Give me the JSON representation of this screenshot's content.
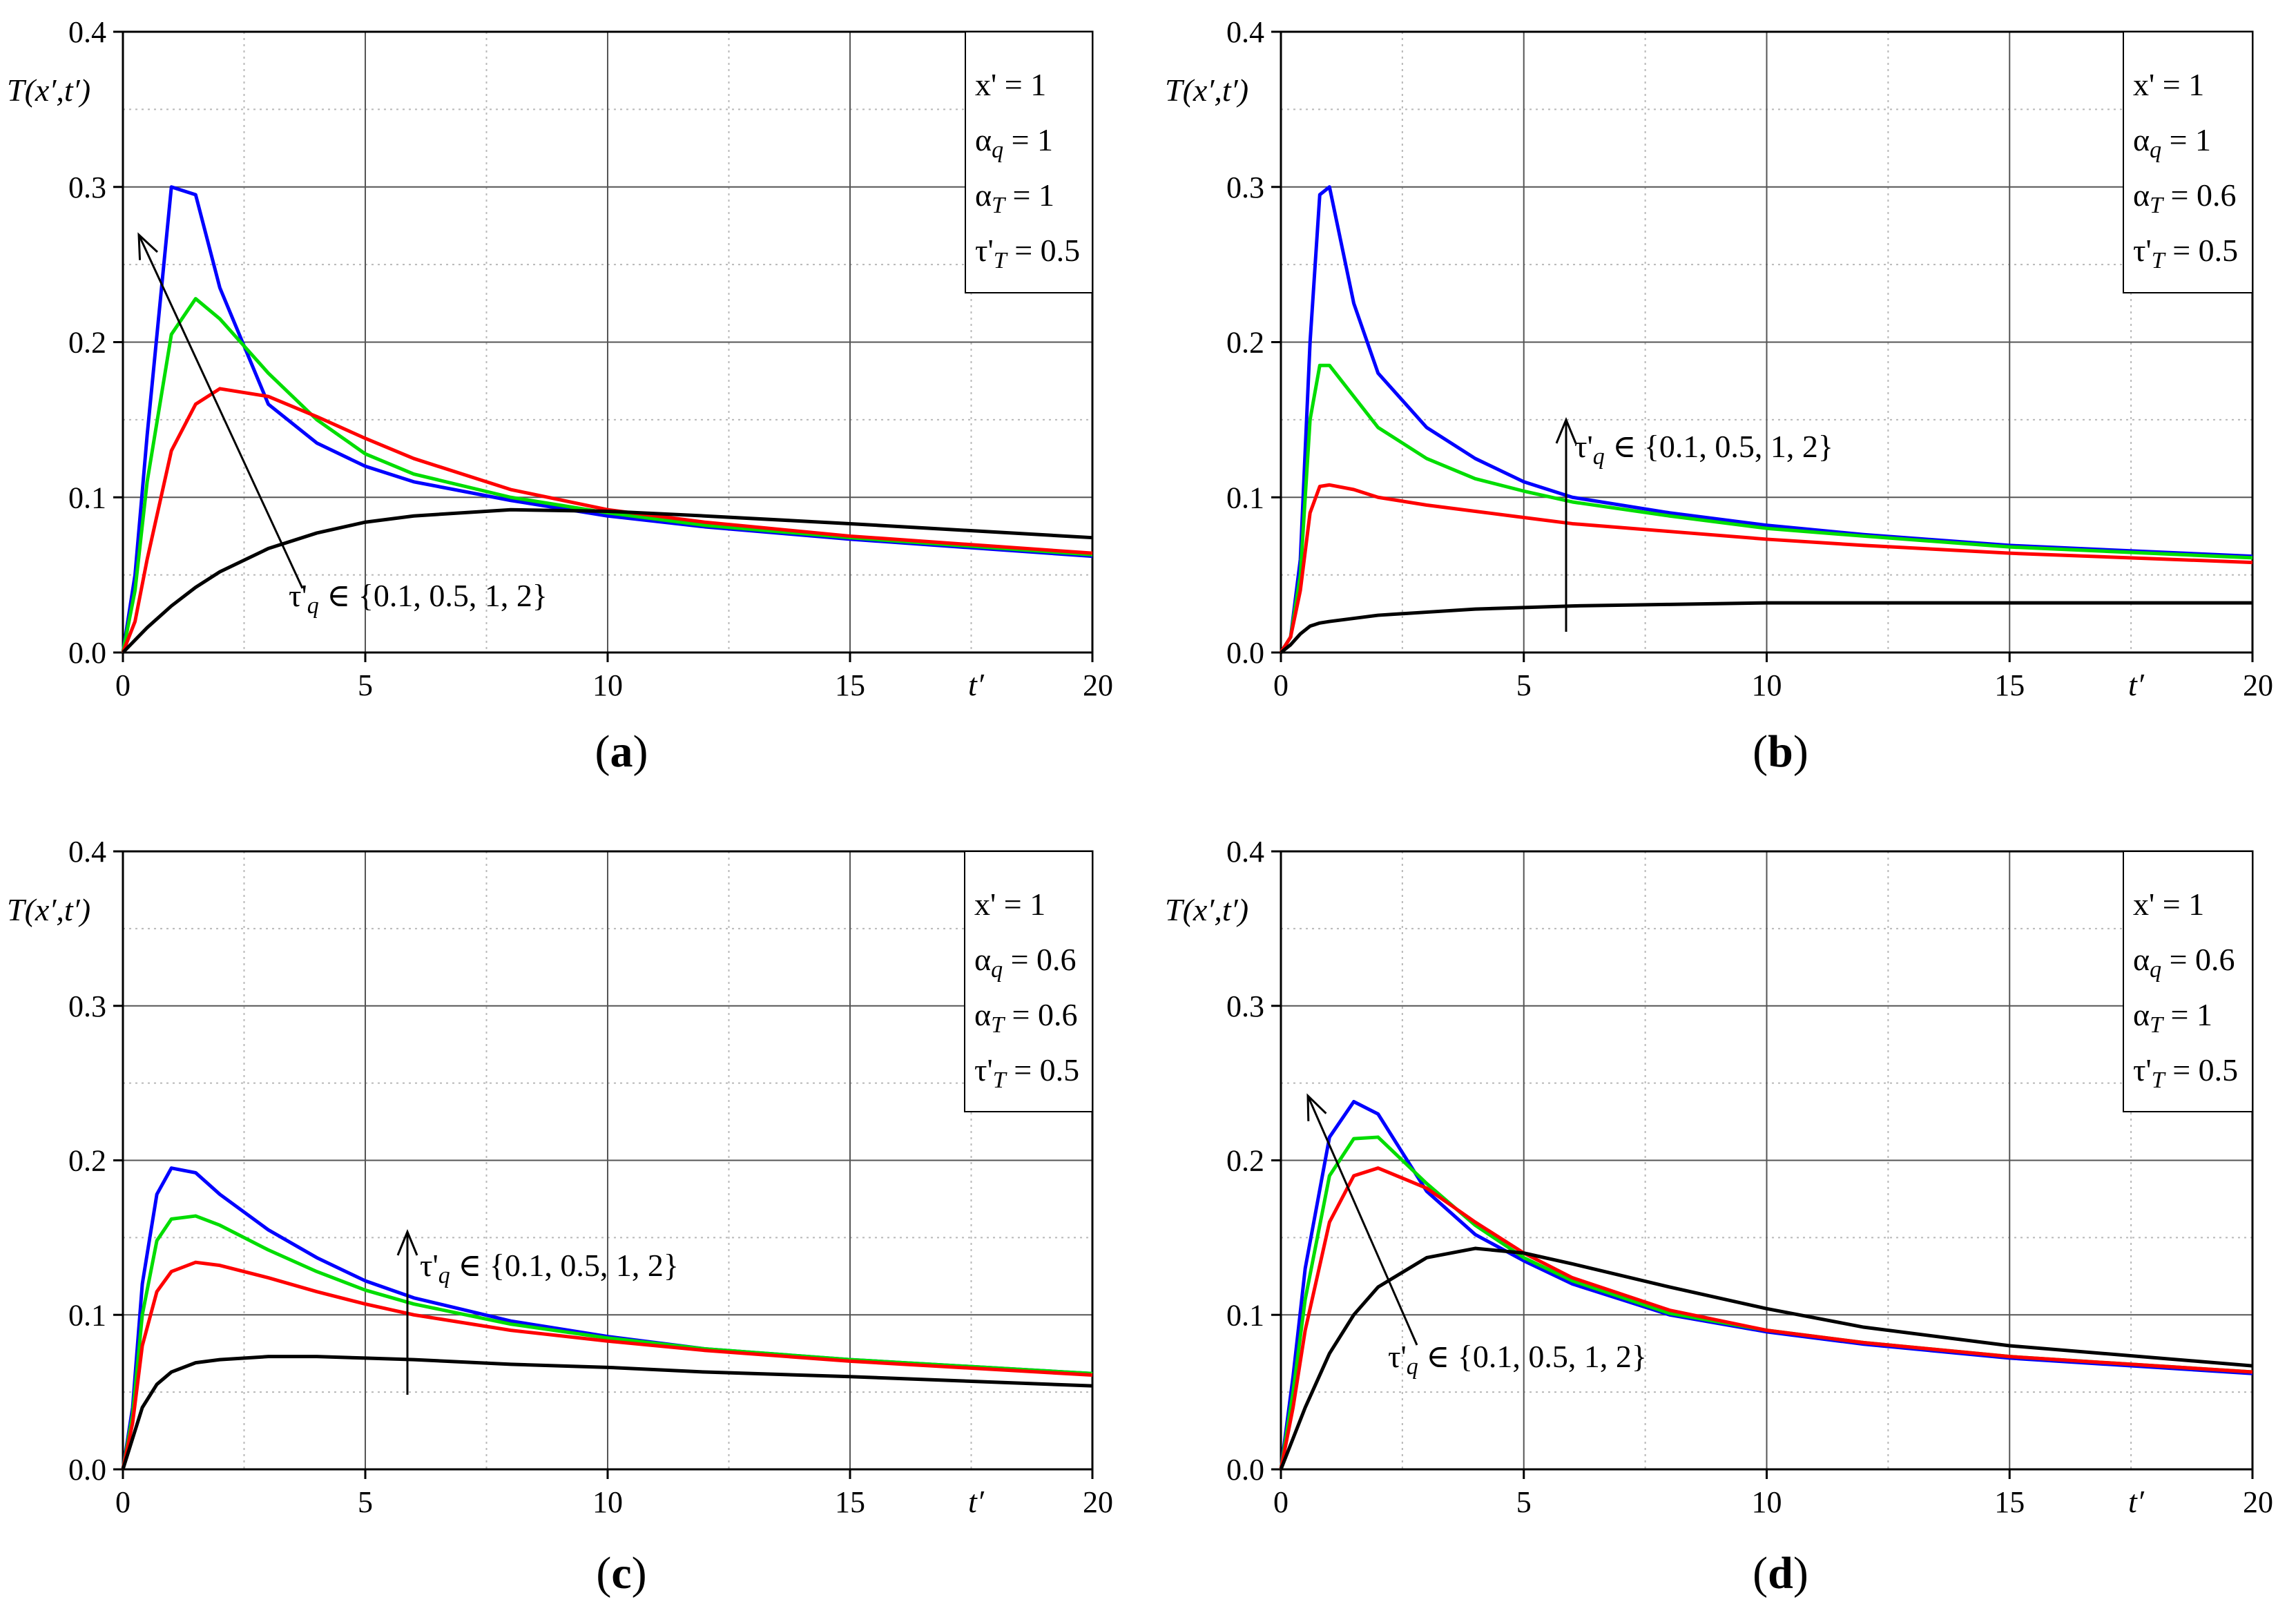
{
  "chart_data": [
    {
      "type": "line",
      "panel": "a",
      "caption_letter": "a",
      "ylabel": "T(x′,t′)",
      "xlabel": "t′",
      "xlim": [
        0,
        20
      ],
      "ylim": [
        0,
        0.4
      ],
      "xticks": [
        "0",
        "5",
        "10",
        "15",
        "20"
      ],
      "yticks": [
        "0.0",
        "0.1",
        "0.2",
        "0.3",
        "0.4"
      ],
      "legend": [
        "x' = 1",
        "αq = 1",
        "αT = 1",
        "τ'T = 0.5"
      ],
      "annotation": "τ'q ∈ {0.1, 0.5, 1, 2}",
      "x": [
        0,
        0.25,
        0.5,
        1,
        1.5,
        2,
        3,
        4,
        5,
        6,
        8,
        10,
        12,
        15,
        20
      ],
      "series": [
        {
          "name": "τ'q = 0.1",
          "color": "#0000ff",
          "values": [
            0,
            0.05,
            0.14,
            0.3,
            0.295,
            0.235,
            0.16,
            0.135,
            0.12,
            0.11,
            0.098,
            0.088,
            0.081,
            0.073,
            0.062
          ]
        },
        {
          "name": "τ'q = 0.5",
          "color": "#00dd00",
          "values": [
            0,
            0.04,
            0.11,
            0.205,
            0.228,
            0.215,
            0.18,
            0.15,
            0.128,
            0.115,
            0.1,
            0.09,
            0.082,
            0.074,
            0.063
          ]
        },
        {
          "name": "τ'q = 1",
          "color": "#ff0000",
          "values": [
            0,
            0.02,
            0.06,
            0.13,
            0.16,
            0.17,
            0.165,
            0.152,
            0.138,
            0.125,
            0.105,
            0.092,
            0.084,
            0.075,
            0.064
          ]
        },
        {
          "name": "τ'q = 2",
          "color": "#000000",
          "values": [
            0,
            0.008,
            0.016,
            0.03,
            0.042,
            0.052,
            0.067,
            0.077,
            0.084,
            0.088,
            0.092,
            0.091,
            0.088,
            0.083,
            0.074
          ]
        }
      ]
    },
    {
      "type": "line",
      "panel": "b",
      "caption_letter": "b",
      "ylabel": "T(x′,t′)",
      "xlabel": "t′",
      "xlim": [
        0,
        20
      ],
      "ylim": [
        0,
        0.4
      ],
      "xticks": [
        "0",
        "5",
        "10",
        "15",
        "20"
      ],
      "yticks": [
        "0.0",
        "0.1",
        "0.2",
        "0.3",
        "0.4"
      ],
      "legend": [
        "x' = 1",
        "αq = 1",
        "αT = 0.6",
        "τ'T = 0.5"
      ],
      "annotation": "τ'q ∈ {0.1, 0.5, 1, 2}",
      "x": [
        0,
        0.2,
        0.4,
        0.6,
        0.8,
        1,
        1.5,
        2,
        3,
        4,
        5,
        6,
        8,
        10,
        12,
        15,
        20
      ],
      "series": [
        {
          "name": "τ'q = 0.1",
          "color": "#0000ff",
          "values": [
            0,
            0.01,
            0.06,
            0.2,
            0.295,
            0.3,
            0.225,
            0.18,
            0.145,
            0.125,
            0.11,
            0.1,
            0.09,
            0.082,
            0.076,
            0.069,
            0.062
          ]
        },
        {
          "name": "τ'q = 0.5",
          "color": "#00dd00",
          "values": [
            0,
            0.01,
            0.05,
            0.15,
            0.185,
            0.185,
            0.165,
            0.145,
            0.125,
            0.112,
            0.104,
            0.097,
            0.088,
            0.08,
            0.075,
            0.068,
            0.061
          ]
        },
        {
          "name": "τ'q = 1",
          "color": "#ff0000",
          "values": [
            0,
            0.01,
            0.04,
            0.09,
            0.107,
            0.108,
            0.105,
            0.1,
            0.095,
            0.091,
            0.087,
            0.083,
            0.078,
            0.073,
            0.069,
            0.064,
            0.058
          ]
        },
        {
          "name": "τ'q = 2",
          "color": "#000000",
          "values": [
            0,
            0.005,
            0.012,
            0.017,
            0.019,
            0.02,
            0.022,
            0.024,
            0.026,
            0.028,
            0.029,
            0.03,
            0.031,
            0.032,
            0.032,
            0.032,
            0.032
          ]
        }
      ]
    },
    {
      "type": "line",
      "panel": "c",
      "caption_letter": "c",
      "ylabel": "T(x′,t′)",
      "xlabel": "t′",
      "xlim": [
        0,
        20
      ],
      "ylim": [
        0,
        0.4
      ],
      "xticks": [
        "0",
        "5",
        "10",
        "15",
        "20"
      ],
      "yticks": [
        "0.0",
        "0.1",
        "0.2",
        "0.3",
        "0.4"
      ],
      "legend": [
        "x' = 1",
        "αq = 0.6",
        "αT = 0.6",
        "τ'T = 0.5"
      ],
      "annotation": "τ'q ∈ {0.1, 0.5, 1, 2}",
      "x": [
        0,
        0.2,
        0.4,
        0.7,
        1,
        1.5,
        2,
        3,
        4,
        5,
        6,
        8,
        10,
        12,
        15,
        20
      ],
      "series": [
        {
          "name": "τ'q = 0.1",
          "color": "#0000ff",
          "values": [
            0,
            0.04,
            0.12,
            0.178,
            0.195,
            0.192,
            0.178,
            0.155,
            0.137,
            0.122,
            0.111,
            0.096,
            0.086,
            0.078,
            0.071,
            0.062
          ]
        },
        {
          "name": "τ'q = 0.5",
          "color": "#00dd00",
          "values": [
            0,
            0.035,
            0.1,
            0.148,
            0.162,
            0.164,
            0.158,
            0.142,
            0.128,
            0.116,
            0.107,
            0.094,
            0.085,
            0.078,
            0.071,
            0.062
          ]
        },
        {
          "name": "τ'q = 1",
          "color": "#ff0000",
          "values": [
            0,
            0.03,
            0.08,
            0.115,
            0.128,
            0.134,
            0.132,
            0.124,
            0.115,
            0.107,
            0.1,
            0.09,
            0.083,
            0.077,
            0.07,
            0.061
          ]
        },
        {
          "name": "τ'q = 2",
          "color": "#000000",
          "values": [
            0,
            0.02,
            0.04,
            0.055,
            0.063,
            0.069,
            0.071,
            0.073,
            0.073,
            0.072,
            0.071,
            0.068,
            0.066,
            0.063,
            0.06,
            0.054
          ]
        }
      ]
    },
    {
      "type": "line",
      "panel": "d",
      "caption_letter": "d",
      "ylabel": "T(x′,t′)",
      "xlabel": "t′",
      "xlim": [
        0,
        20
      ],
      "ylim": [
        0,
        0.4
      ],
      "xticks": [
        "0",
        "5",
        "10",
        "15",
        "20"
      ],
      "yticks": [
        "0.0",
        "0.1",
        "0.2",
        "0.3",
        "0.4"
      ],
      "legend": [
        "x' = 1",
        "αq = 0.6",
        "αT = 1",
        "τ'T = 0.5"
      ],
      "annotation": "τ'q ∈ {0.1, 0.5, 1, 2}",
      "x": [
        0,
        0.25,
        0.5,
        1,
        1.5,
        2,
        3,
        4,
        5,
        6,
        8,
        10,
        12,
        15,
        20
      ],
      "series": [
        {
          "name": "τ'q = 0.1",
          "color": "#0000ff",
          "values": [
            0,
            0.06,
            0.13,
            0.215,
            0.238,
            0.23,
            0.18,
            0.152,
            0.135,
            0.12,
            0.1,
            0.089,
            0.081,
            0.072,
            0.062
          ]
        },
        {
          "name": "τ'q = 0.5",
          "color": "#00dd00",
          "values": [
            0,
            0.05,
            0.11,
            0.19,
            0.214,
            0.215,
            0.185,
            0.158,
            0.137,
            0.122,
            0.101,
            0.09,
            0.082,
            0.073,
            0.063
          ]
        },
        {
          "name": "τ'q = 1",
          "color": "#ff0000",
          "values": [
            0,
            0.04,
            0.09,
            0.16,
            0.19,
            0.195,
            0.182,
            0.16,
            0.14,
            0.124,
            0.103,
            0.09,
            0.082,
            0.073,
            0.063
          ]
        },
        {
          "name": "τ'q = 2",
          "color": "#000000",
          "values": [
            0,
            0.02,
            0.04,
            0.075,
            0.1,
            0.118,
            0.137,
            0.143,
            0.14,
            0.133,
            0.118,
            0.104,
            0.092,
            0.08,
            0.067
          ]
        }
      ]
    }
  ]
}
